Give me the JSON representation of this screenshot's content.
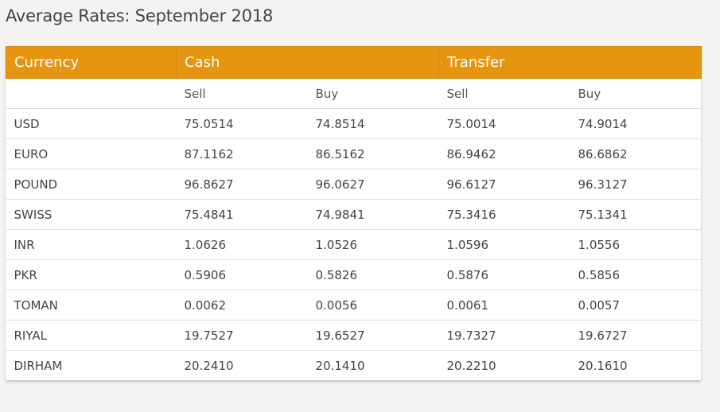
{
  "title": "Average Rates: September 2018",
  "header": {
    "currency": "Currency",
    "cash": "Cash",
    "transfer": "Transfer"
  },
  "subheader": {
    "cash_sell": "Sell",
    "cash_buy": "Buy",
    "transfer_sell": "Sell",
    "transfer_buy": "Buy"
  },
  "rows": [
    {
      "currency": "USD",
      "cash_sell": "75.0514",
      "cash_buy": "74.8514",
      "transfer_sell": "75.0014",
      "transfer_buy": "74.9014"
    },
    {
      "currency": "EURO",
      "cash_sell": "87.1162",
      "cash_buy": "86.5162",
      "transfer_sell": "86.9462",
      "transfer_buy": "86.6862"
    },
    {
      "currency": "POUND",
      "cash_sell": "96.8627",
      "cash_buy": "96.0627",
      "transfer_sell": "96.6127",
      "transfer_buy": "96.3127"
    },
    {
      "currency": "SWISS",
      "cash_sell": "75.4841",
      "cash_buy": "74.9841",
      "transfer_sell": "75.3416",
      "transfer_buy": "75.1341"
    },
    {
      "currency": "INR",
      "cash_sell": "1.0626",
      "cash_buy": "1.0526",
      "transfer_sell": "1.0596",
      "transfer_buy": "1.0556"
    },
    {
      "currency": "PKR",
      "cash_sell": "0.5906",
      "cash_buy": "0.5826",
      "transfer_sell": "0.5876",
      "transfer_buy": "0.5856"
    },
    {
      "currency": "TOMAN",
      "cash_sell": "0.0062",
      "cash_buy": "0.0056",
      "transfer_sell": "0.0061",
      "transfer_buy": "0.0057"
    },
    {
      "currency": "RIYAL",
      "cash_sell": "19.7527",
      "cash_buy": "19.6527",
      "transfer_sell": "19.7327",
      "transfer_buy": "19.6727"
    },
    {
      "currency": "DIRHAM",
      "cash_sell": "20.2410",
      "cash_buy": "20.1410",
      "transfer_sell": "20.2210",
      "transfer_buy": "20.1610"
    }
  ],
  "colors": {
    "header_bg": "#e69510",
    "header_text": "#ffffff",
    "page_bg": "#f4f3f1"
  }
}
